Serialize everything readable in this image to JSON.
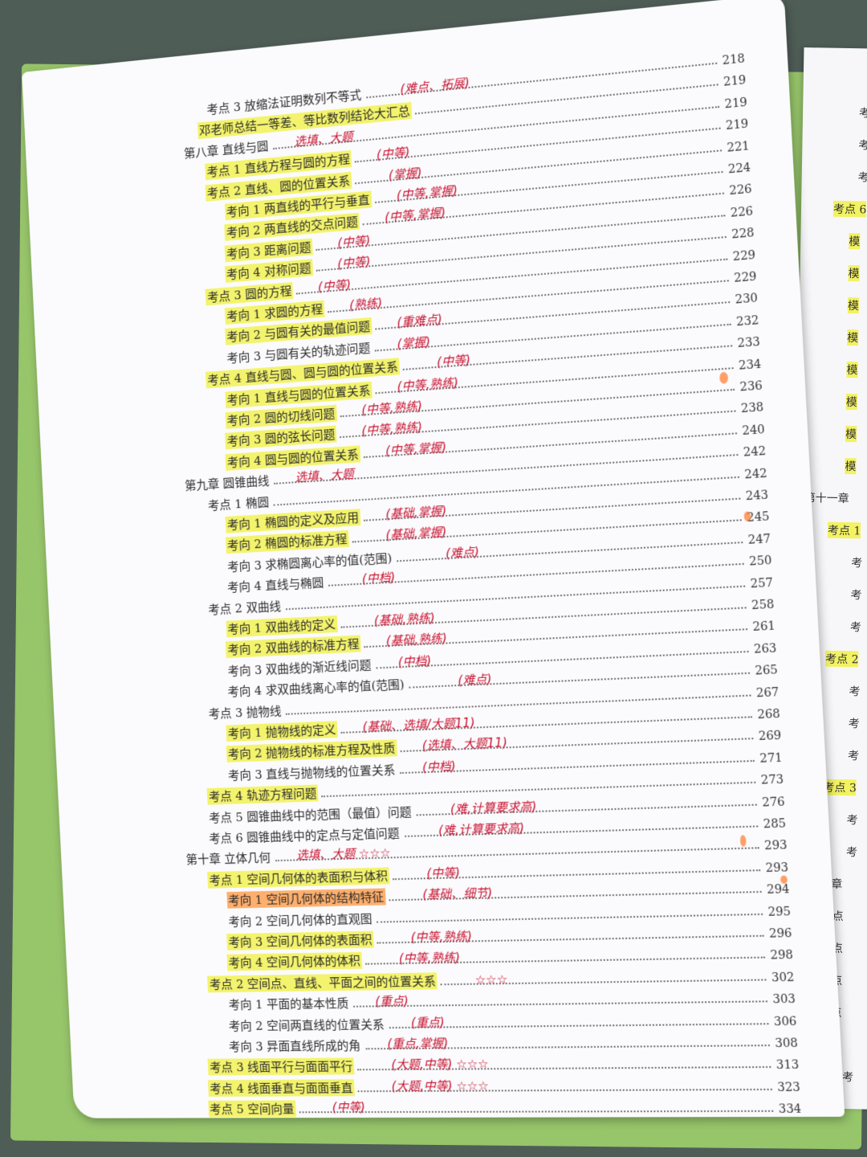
{
  "entries": [
    {
      "text": "考点 3  放缩法证明数列不等式",
      "page": "218",
      "note": "(难点、拓展)",
      "hl": false
    },
    {
      "text": "邓老师总结一等差、等比数列结论大汇总",
      "page": "219",
      "note": "",
      "hl": true
    },
    {
      "text": "第八章  直线与圆",
      "page": "219",
      "note": "选填、大题",
      "hl": false
    },
    {
      "text": "考点 1 直线方程与圆的方程",
      "page": "219",
      "note": "(中等)",
      "hl": true
    },
    {
      "text": "考点 2  直线、圆的位置关系",
      "page": "221",
      "note": "(掌握)",
      "hl": true
    },
    {
      "text": "考向 1 两直线的平行与垂直",
      "page": "224",
      "note": "(中等,掌握)",
      "hl": true
    },
    {
      "text": "考向 2 两直线的交点问题",
      "page": "226",
      "note": "(中等,掌握)",
      "hl": true
    },
    {
      "text": "考向 3 距离问题",
      "page": "226",
      "note": "(中等)",
      "hl": true
    },
    {
      "text": "考向 4 对称问题",
      "page": "228",
      "note": "(中等)",
      "hl": true
    },
    {
      "text": "考点 3 圆的方程",
      "page": "229",
      "note": "(中等)",
      "hl": true
    },
    {
      "text": "考向 1 求圆的方程",
      "page": "229",
      "note": "(熟练)",
      "hl": true
    },
    {
      "text": "考向 2 与圆有关的最值问题",
      "page": "230",
      "note": "(重难点)",
      "hl": true
    },
    {
      "text": "考向 3 与圆有关的轨迹问题",
      "page": "232",
      "note": "(掌握)",
      "hl": false
    },
    {
      "text": "考点 4  直线与圆、圆与圆的位置关系",
      "page": "233",
      "note": "(中等)",
      "hl": true
    },
    {
      "text": "考向 1 直线与圆的位置关系",
      "page": "234",
      "note": "(中等,熟练)",
      "hl": true
    },
    {
      "text": "考向 2 圆的切线问题",
      "page": "236",
      "note": "(中等,熟练)",
      "hl": true
    },
    {
      "text": "考向 3 圆的弦长问题",
      "page": "238",
      "note": "(中等,熟练)",
      "hl": true
    },
    {
      "text": "考向 4 圆与圆的位置关系",
      "page": "240",
      "note": "(中等,掌握)",
      "hl": true
    },
    {
      "text": "第九章  圆锥曲线",
      "page": "242",
      "note": "选填、大题",
      "hl": false
    },
    {
      "text": "考点 1  椭圆",
      "page": "242",
      "note": "",
      "hl": false
    },
    {
      "text": "考向 1 椭圆的定义及应用",
      "page": "243",
      "note": "(基础,掌握)",
      "hl": true
    },
    {
      "text": "考向 2  椭圆的标准方程",
      "page": "245",
      "note": "(基础,掌握)",
      "hl": true
    },
    {
      "text": "考向 3  求椭圆离心率的值(范围)",
      "page": "247",
      "note": "(难点)",
      "hl": false
    },
    {
      "text": "考向 4  直线与椭圆",
      "page": "250",
      "note": "(中档)",
      "hl": false
    },
    {
      "text": "考点 2  双曲线",
      "page": "257",
      "note": "",
      "hl": false
    },
    {
      "text": "考向 1  双曲线的定义",
      "page": "258",
      "note": "(基础,熟练)",
      "hl": true
    },
    {
      "text": "考向 2 双曲线的标准方程",
      "page": "261",
      "note": "(基础,熟练)",
      "hl": true
    },
    {
      "text": "考向 3 双曲线的渐近线问题",
      "page": "263",
      "note": "(中档)",
      "hl": false
    },
    {
      "text": "考向 4  求双曲线离心率的值(范围)",
      "page": "265",
      "note": "(难点)",
      "hl": false
    },
    {
      "text": "考点 3 抛物线",
      "page": "267",
      "note": "",
      "hl": false
    },
    {
      "text": "考向 1 抛物线的定义",
      "page": "268",
      "note": "(基础、选填/大题11)",
      "hl": true
    },
    {
      "text": "考向 2 抛物线的标准方程及性质",
      "page": "269",
      "note": "(选填、大题11)",
      "hl": true
    },
    {
      "text": "考向 3 直线与抛物线的位置关系",
      "page": "271",
      "note": "(中档)",
      "hl": false
    },
    {
      "text": "考点 4  轨迹方程问题",
      "page": "273",
      "note": "",
      "hl": true
    },
    {
      "text": "考点 5  圆锥曲线中的范围（最值）问题",
      "page": "276",
      "note": "(难,计算要求高)",
      "hl": false
    },
    {
      "text": "考点 6  圆锥曲线中的定点与定值问题",
      "page": "285",
      "note": "(难,计算要求高)",
      "hl": false
    },
    {
      "text": "第十章  立体几何",
      "page": "293",
      "note": "选填、大题 ☆☆☆",
      "hl": false
    },
    {
      "text": "考点 1  空间几何体的表面积与体积",
      "page": "293",
      "note": "(中等)",
      "hl": true
    },
    {
      "text": "考向 1  空间几何体的结构特征",
      "page": "294",
      "note": "(基础、细节)",
      "hl": "orange"
    },
    {
      "text": "考向 2  空间几何体的直观图",
      "page": "295",
      "note": "",
      "hl": false
    },
    {
      "text": "考向 3  空间几何体的表面积",
      "page": "296",
      "note": "(中等,熟练)",
      "hl": true
    },
    {
      "text": "考向 4  空间几何体的体积",
      "page": "298",
      "note": "(中等,熟练)",
      "hl": true
    },
    {
      "text": "考点 2  空间点、直线、平面之间的位置关系",
      "page": "302",
      "note": "☆☆☆",
      "hl": true
    },
    {
      "text": "考向 1 平面的基本性质",
      "page": "303",
      "note": "(重点)",
      "hl": false
    },
    {
      "text": "考向 2 空间两直线的位置关系",
      "page": "306",
      "note": "(重点)",
      "hl": false
    },
    {
      "text": "考向 3 异面直线所成的角",
      "page": "308",
      "note": "(重点,掌握)",
      "hl": false
    },
    {
      "text": "考点 3  线面平行与面面平行",
      "page": "313",
      "note": "(大题,中等) ☆☆☆",
      "hl": true
    },
    {
      "text": "考点 4  线面垂直与面面垂直",
      "page": "323",
      "note": "(大题,中等) ☆☆☆",
      "hl": true
    },
    {
      "text": "考点 5  空间向量",
      "page": "334",
      "note": "(中等)",
      "hl": true
    }
  ],
  "right_column": [
    "考",
    "考",
    "考",
    "考点 6",
    "模",
    "模",
    "模",
    "模",
    "模",
    "模",
    "模",
    "模",
    "第十一章",
    "考点 1",
    "考",
    "考",
    "考",
    "考点 2",
    "考",
    "考",
    "考",
    "考点 3",
    "考",
    "考",
    "第十二章",
    "考点",
    "考点",
    "考点",
    "考点",
    "第十三",
    "考"
  ],
  "colors": {
    "highlight": "#f0f03c",
    "highlight_orange": "#ff9640",
    "note_ink": "#c8102e"
  }
}
